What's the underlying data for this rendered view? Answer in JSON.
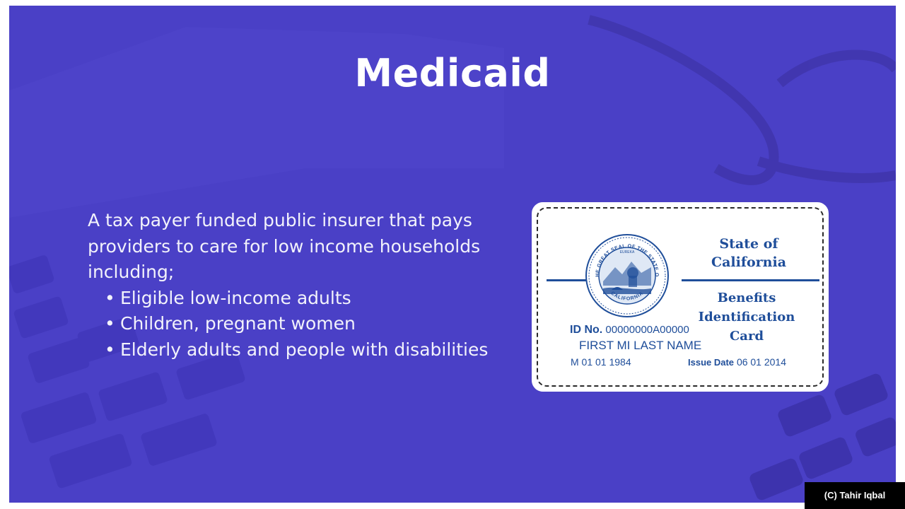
{
  "slide": {
    "title": "Medicaid",
    "intro": "A tax payer funded public insurer that pays providers to care for low income households including;",
    "bullets": [
      "Eligible low-income adults",
      "Children, pregnant women",
      "Elderly adults and people with disabilities"
    ],
    "bullet_glyph": "•"
  },
  "card": {
    "state_line1": "State of",
    "state_line2": "California",
    "card_title_line1": "Benefits",
    "card_title_line2": "Identification",
    "card_title_line3": "Card",
    "id_label": "ID No.",
    "id_value": "00000000A00000",
    "name": "FIRST MI LAST NAME",
    "dob": "M 01 01 1984",
    "issue_label": "Issue Date",
    "issue_value": "06 01 2014",
    "seal_text_top": "THE GREAT SEAL OF THE STATE OF",
    "seal_text_bottom": "CALIFORNIA",
    "seal_motto": "EUREKA",
    "seal_icon": "california-state-seal-icon",
    "ink_color": "#1f4e9a"
  },
  "colors": {
    "slide_background": "#4a40c6",
    "title_text": "#ffffff"
  },
  "watermark": "(C) Tahir Iqbal"
}
